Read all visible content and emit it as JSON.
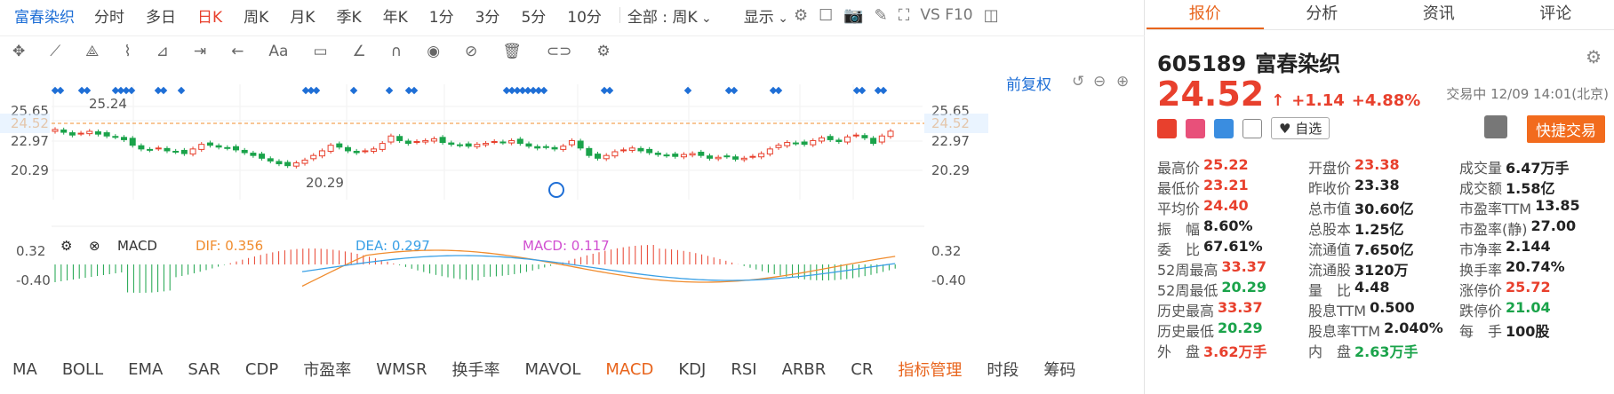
{
  "topbar": {
    "name": "富春染织",
    "periods": [
      "分时",
      "多日",
      "日K",
      "周K",
      "月K",
      "季K",
      "年K",
      "1分",
      "3分",
      "5分",
      "10分"
    ],
    "active_period": "日K",
    "all_select": "全部 : 周K",
    "display": "显示",
    "vs": "VS F10"
  },
  "chart": {
    "restore": "前复权",
    "price_ticks_left": [
      "25.65",
      "24.52",
      "22.97",
      "20.29"
    ],
    "price_ticks_right": [
      "25.65",
      "24.52",
      "22.97",
      "20.29"
    ],
    "high_marker": "25.24",
    "low_marker": "20.29",
    "macd_ticks_left": [
      "0.32",
      "-0.40"
    ],
    "macd_ticks_right": [
      "0.32",
      "-0.40"
    ],
    "indicator_name": "MACD",
    "dif_label": "DIF: 0.356",
    "dea_label": "DEA: 0.297",
    "macd_label": "MACD: 0.117",
    "colors": {
      "up": "#e8402d",
      "down": "#1aa34a",
      "dif": "#f08c2e",
      "dea": "#3aa0e6",
      "macd": "#d14fd1",
      "current": "#f08c2e",
      "blue": "#1f6fd6"
    }
  },
  "bottom_tabs": [
    "MA",
    "BOLL",
    "EMA",
    "SAR",
    "CDP",
    "市盈率",
    "WMSR",
    "换手率",
    "MAVOL",
    "MACD",
    "KDJ",
    "RSI",
    "ARBR",
    "CR",
    "指标管理",
    "时段",
    "筹码"
  ],
  "active_tab": "MACD",
  "quote": {
    "tabs": [
      "报价",
      "分析",
      "资讯",
      "评论"
    ],
    "active_tab": "报价",
    "code": "605189",
    "name": "富春染织",
    "price": "24.52",
    "change": "+1.14",
    "change_pct": "+4.88%",
    "trade_time": "交易中 12/09 14:01(北京)",
    "watch": "自选",
    "fast_trade": "快捷交易",
    "stats": [
      [
        {
          "l": "最高价",
          "v": "25.22",
          "c": "red"
        },
        {
          "l": "开盘价",
          "v": "23.38",
          "c": "red"
        },
        {
          "l": "成交量",
          "v": "6.47万手",
          "c": "dark"
        }
      ],
      [
        {
          "l": "最低价",
          "v": "23.21",
          "c": "red"
        },
        {
          "l": "昨收价",
          "v": "23.38",
          "c": "dark"
        },
        {
          "l": "成交额",
          "v": "1.58亿",
          "c": "dark"
        }
      ],
      [
        {
          "l": "平均价",
          "v": "24.40",
          "c": "red"
        },
        {
          "l": "总市值",
          "v": "30.60亿",
          "c": "dark"
        },
        {
          "l": "市盈率TTM",
          "v": "13.85",
          "c": "dark"
        }
      ],
      [
        {
          "l": "振　幅",
          "v": "8.60%",
          "c": "dark"
        },
        {
          "l": "总股本",
          "v": "1.25亿",
          "c": "dark"
        },
        {
          "l": "市盈率(静)",
          "v": "27.00",
          "c": "dark"
        }
      ],
      [
        {
          "l": "委　比",
          "v": "67.61%",
          "c": "dark"
        },
        {
          "l": "流通值",
          "v": "7.650亿",
          "c": "dark"
        },
        {
          "l": "市净率",
          "v": "2.144",
          "c": "dark"
        }
      ],
      [
        {
          "l": "52周最高",
          "v": "33.37",
          "c": "red"
        },
        {
          "l": "流通股",
          "v": "3120万",
          "c": "dark"
        },
        {
          "l": "换手率",
          "v": "20.74%",
          "c": "dark"
        }
      ],
      [
        {
          "l": "52周最低",
          "v": "20.29",
          "c": "green"
        },
        {
          "l": "量　比",
          "v": "4.48",
          "c": "dark"
        },
        {
          "l": "涨停价",
          "v": "25.72",
          "c": "red"
        }
      ],
      [
        {
          "l": "历史最高",
          "v": "33.37",
          "c": "red"
        },
        {
          "l": "股息TTM",
          "v": "0.500",
          "c": "dark"
        },
        {
          "l": "跌停价",
          "v": "21.04",
          "c": "green"
        }
      ],
      [
        {
          "l": "历史最低",
          "v": "20.29",
          "c": "green"
        },
        {
          "l": "股息率TTM",
          "v": "2.040%",
          "c": "dark"
        },
        {
          "l": "每　手",
          "v": "100股",
          "c": "dark"
        }
      ],
      [
        {
          "l": "外　盘",
          "v": "3.62万手",
          "c": "red"
        },
        {
          "l": "内　盘",
          "v": "2.63万手",
          "c": "green"
        },
        {
          "l": "",
          "v": "",
          "c": "dark"
        }
      ]
    ]
  }
}
